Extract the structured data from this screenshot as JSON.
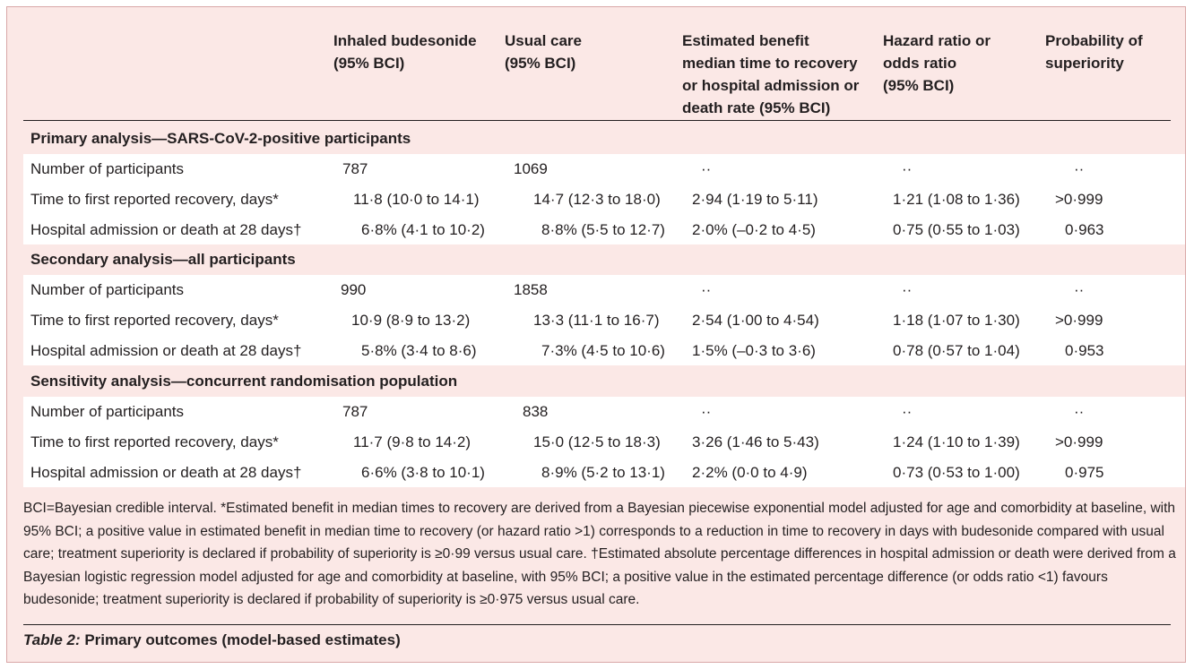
{
  "columns": [
    "Inhaled budesonide\n(95% BCI)",
    "Usual care\n(95% BCI)",
    "Estimated benefit\nmedian time to recovery\nor hospital admission or\ndeath rate (95% BCI)",
    "Hazard ratio or\nodds ratio\n(95% BCI)",
    "Probability of\nsuperiority"
  ],
  "sections": [
    {
      "title": "Primary analysis—SARS-CoV-2-positive participants",
      "rows": [
        {
          "label": "Number of participants",
          "budesonide": "787",
          "usual": "1069",
          "benefit": "··",
          "ratio": "··",
          "prob": "··"
        },
        {
          "label": "Time to first reported recovery, days*",
          "budesonide": "11·8 (10·0 to 14·1)",
          "usual": "14·7 (12·3 to 18·0)",
          "benefit": "2·94 (1·19 to 5·11)",
          "ratio": "1·21 (1·08 to 1·36)",
          "prob": ">0·999"
        },
        {
          "label": "Hospital admission or death at 28 days†",
          "budesonide": "6·8% (4·1 to 10·2)",
          "usual": "8·8% (5·5 to 12·7)",
          "benefit": "2·0% (–0·2 to 4·5)",
          "ratio": "0·75 (0·55 to 1·03)",
          "prob": "0·963"
        }
      ]
    },
    {
      "title": "Secondary analysis—all participants",
      "rows": [
        {
          "label": "Number of participants",
          "budesonide": "990",
          "usual": "1858",
          "benefit": "··",
          "ratio": "··",
          "prob": "··"
        },
        {
          "label": "Time to first reported recovery, days*",
          "budesonide": "10·9 (8·9 to 13·2)",
          "usual": "13·3 (11·1 to 16·7)",
          "benefit": "2·54 (1·00 to 4·54)",
          "ratio": "1·18 (1·07 to 1·30)",
          "prob": ">0·999"
        },
        {
          "label": "Hospital admission or death at 28 days†",
          "budesonide": "5·8% (3·4 to 8·6)",
          "usual": "7·3% (4·5 to 10·6)",
          "benefit": "1·5% (–0·3 to 3·6)",
          "ratio": "0·78 (0·57 to 1·04)",
          "prob": "0·953"
        }
      ]
    },
    {
      "title": "Sensitivity analysis—concurrent randomisation population",
      "rows": [
        {
          "label": "Number of participants",
          "budesonide": "787",
          "usual": "838",
          "benefit": "··",
          "ratio": "··",
          "prob": "··"
        },
        {
          "label": "Time to first reported recovery, days*",
          "budesonide": "11·7 (9·8 to 14·2)",
          "usual": "15·0 (12·5 to 18·3)",
          "benefit": "3·26 (1·46 to 5·43)",
          "ratio": "1·24 (1·10 to 1·39)",
          "prob": ">0·999"
        },
        {
          "label": "Hospital admission or death at 28 days†",
          "budesonide": "6·6% (3·8 to 10·1)",
          "usual": "8·9% (5·2 to 13·1)",
          "benefit": "2·2% (0·0 to 4·9)",
          "ratio": "0·73 (0·53 to 1·00)",
          "prob": "0·975"
        }
      ]
    }
  ],
  "footnote": "BCI=Bayesian credible interval. *Estimated benefit in median times to recovery are derived from a Bayesian piecewise exponential model adjusted for age and comorbidity at baseline, with 95% BCI; a positive value in estimated benefit in median time to recovery (or hazard ratio >1) corresponds to a reduction in time to recovery in days with budesonide compared with usual care; treatment superiority is declared if probability of superiority is ≥0·99 versus usual care. †Estimated absolute percentage differences in hospital admission or death were derived from a Bayesian logistic regression model adjusted for age and comorbidity at baseline, with 95% BCI; a positive value in the estimated percentage difference (or odds ratio <1) favours budesonide; treatment superiority is declared if probability of superiority is ≥0·975 versus usual care.",
  "caption": {
    "label": "Table 2:",
    "text": " Primary outcomes (model-based estimates)"
  },
  "colors": {
    "background": "#fbe8e6",
    "band": "#ffffff",
    "text": "#231f20"
  }
}
